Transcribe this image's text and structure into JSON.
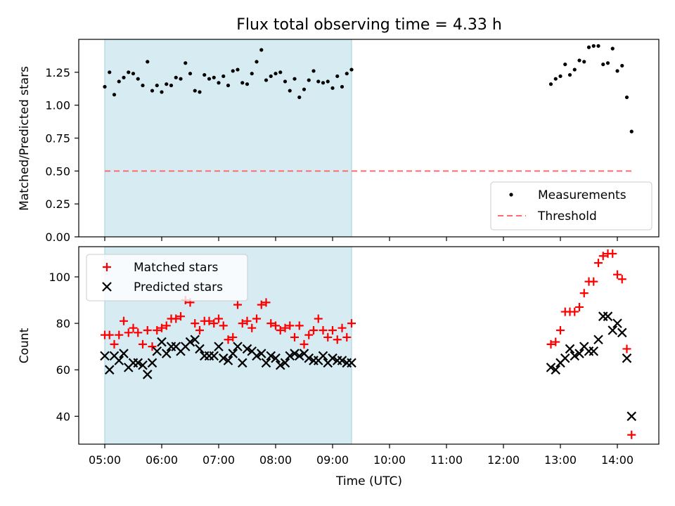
{
  "chart_data": [
    {
      "type": "scatter",
      "title": "Flux total observing time = 4.33 h",
      "xlabel": "",
      "ylabel": "Matched/Predicted stars",
      "ylim": [
        0,
        1.5
      ],
      "yticks": [
        "0.00",
        "0.25",
        "0.50",
        "0.75",
        "1.00",
        "1.25"
      ],
      "shaded_span": [
        "05:00",
        "09:20"
      ],
      "legend": {
        "position": "lower-right",
        "entries": [
          "Measurements",
          "Threshold"
        ]
      },
      "threshold": {
        "name": "Threshold",
        "y": 0.5,
        "x": [
          "05:00",
          "14:15"
        ]
      },
      "series": [
        {
          "name": "Measurements",
          "x": [
            "05:00",
            "05:05",
            "05:10",
            "05:15",
            "05:20",
            "05:25",
            "05:30",
            "05:35",
            "05:40",
            "05:45",
            "05:50",
            "05:55",
            "06:00",
            "06:05",
            "06:10",
            "06:15",
            "06:20",
            "06:25",
            "06:30",
            "06:35",
            "06:40",
            "06:45",
            "06:50",
            "06:55",
            "07:00",
            "07:05",
            "07:10",
            "07:15",
            "07:20",
            "07:25",
            "07:30",
            "07:35",
            "07:40",
            "07:45",
            "07:50",
            "07:55",
            "08:00",
            "08:05",
            "08:10",
            "08:15",
            "08:20",
            "08:25",
            "08:30",
            "08:35",
            "08:40",
            "08:45",
            "08:50",
            "08:55",
            "09:00",
            "09:05",
            "09:10",
            "09:15",
            "09:20",
            "12:50",
            "12:55",
            "13:00",
            "13:05",
            "13:10",
            "13:15",
            "13:20",
            "13:25",
            "13:30",
            "13:35",
            "13:40",
            "13:45",
            "13:50",
            "13:55",
            "14:00",
            "14:05",
            "14:10",
            "14:15"
          ],
          "values": [
            1.14,
            1.25,
            1.08,
            1.18,
            1.21,
            1.25,
            1.24,
            1.2,
            1.15,
            1.33,
            1.11,
            1.15,
            1.1,
            1.16,
            1.15,
            1.21,
            1.2,
            1.32,
            1.24,
            1.11,
            1.1,
            1.23,
            1.2,
            1.21,
            1.17,
            1.22,
            1.15,
            1.26,
            1.27,
            1.17,
            1.16,
            1.24,
            1.33,
            1.42,
            1.19,
            1.22,
            1.24,
            1.25,
            1.18,
            1.11,
            1.2,
            1.06,
            1.12,
            1.19,
            1.26,
            1.18,
            1.17,
            1.18,
            1.13,
            1.22,
            1.14,
            1.24,
            1.27,
            1.16,
            1.2,
            1.22,
            1.31,
            1.23,
            1.27,
            1.34,
            1.33,
            1.44,
            1.45,
            1.45,
            1.31,
            1.32,
            1.43,
            1.26,
            1.3,
            1.06,
            0.8
          ]
        }
      ]
    },
    {
      "type": "scatter",
      "title": "",
      "xlabel": "Time (UTC)",
      "ylabel": "Count",
      "ylim": [
        28,
        113
      ],
      "yticks": [
        "40",
        "60",
        "80",
        "100"
      ],
      "xticks": [
        "05:00",
        "06:00",
        "07:00",
        "08:00",
        "09:00",
        "10:00",
        "11:00",
        "12:00",
        "13:00",
        "14:00"
      ],
      "shaded_span": [
        "05:00",
        "09:20"
      ],
      "legend": {
        "position": "upper-left",
        "entries": [
          "Matched stars",
          "Predicted stars"
        ]
      },
      "series": [
        {
          "name": "Matched stars",
          "marker": "+",
          "color": "#ff0000",
          "x": [
            "05:00",
            "05:05",
            "05:10",
            "05:15",
            "05:20",
            "05:25",
            "05:30",
            "05:35",
            "05:40",
            "05:45",
            "05:50",
            "05:55",
            "06:00",
            "06:05",
            "06:10",
            "06:15",
            "06:20",
            "06:25",
            "06:30",
            "06:35",
            "06:40",
            "06:45",
            "06:50",
            "06:55",
            "07:00",
            "07:05",
            "07:10",
            "07:15",
            "07:20",
            "07:25",
            "07:30",
            "07:35",
            "07:40",
            "07:45",
            "07:50",
            "07:55",
            "08:00",
            "08:05",
            "08:10",
            "08:15",
            "08:20",
            "08:25",
            "08:30",
            "08:35",
            "08:40",
            "08:45",
            "08:50",
            "08:55",
            "09:00",
            "09:05",
            "09:10",
            "09:15",
            "09:20",
            "12:50",
            "12:55",
            "13:00",
            "13:05",
            "13:10",
            "13:15",
            "13:20",
            "13:25",
            "13:30",
            "13:35",
            "13:40",
            "13:45",
            "13:50",
            "13:55",
            "14:00",
            "14:05",
            "14:10",
            "14:15"
          ],
          "values": [
            75,
            75,
            71,
            75,
            81,
            76,
            78,
            76,
            71,
            77,
            70,
            77,
            78,
            79,
            82,
            82,
            83,
            90,
            89,
            80,
            77,
            81,
            81,
            80,
            82,
            79,
            73,
            74,
            88,
            80,
            81,
            78,
            82,
            88,
            89,
            80,
            79,
            77,
            78,
            79,
            74,
            79,
            71,
            75,
            77,
            82,
            77,
            74,
            77,
            73,
            78,
            74,
            80,
            71,
            72,
            77,
            85,
            85,
            85,
            87,
            93,
            98,
            98,
            106,
            109,
            110,
            110,
            101,
            99,
            69,
            32
          ]
        },
        {
          "name": "Predicted stars",
          "marker": "x",
          "color": "#000000",
          "x": [
            "05:00",
            "05:05",
            "05:10",
            "05:15",
            "05:20",
            "05:25",
            "05:30",
            "05:35",
            "05:40",
            "05:45",
            "05:50",
            "05:55",
            "06:00",
            "06:05",
            "06:10",
            "06:15",
            "06:20",
            "06:25",
            "06:30",
            "06:35",
            "06:40",
            "06:45",
            "06:50",
            "06:55",
            "07:00",
            "07:05",
            "07:10",
            "07:15",
            "07:20",
            "07:25",
            "07:30",
            "07:35",
            "07:40",
            "07:45",
            "07:50",
            "07:55",
            "08:00",
            "08:05",
            "08:10",
            "08:15",
            "08:20",
            "08:25",
            "08:30",
            "08:35",
            "08:40",
            "08:45",
            "08:50",
            "08:55",
            "09:00",
            "09:05",
            "09:10",
            "09:15",
            "09:20",
            "12:50",
            "12:55",
            "13:00",
            "13:05",
            "13:10",
            "13:15",
            "13:20",
            "13:25",
            "13:30",
            "13:35",
            "13:40",
            "13:45",
            "13:50",
            "13:55",
            "14:00",
            "14:05",
            "14:10",
            "14:15"
          ],
          "values": [
            66,
            60,
            66,
            64,
            67,
            61,
            63,
            63,
            62,
            58,
            63,
            68,
            72,
            67,
            70,
            70,
            68,
            70,
            72,
            73,
            69,
            66,
            66,
            66,
            70,
            65,
            64,
            67,
            70,
            63,
            69,
            68,
            66,
            67,
            63,
            66,
            65,
            62,
            63,
            66,
            67,
            66,
            67,
            65,
            64,
            64,
            66,
            63,
            65,
            64,
            64,
            63,
            63,
            61,
            60,
            63,
            65,
            69,
            66,
            67,
            70,
            68,
            68,
            73,
            83,
            83,
            77,
            80,
            76,
            65,
            40
          ]
        }
      ]
    }
  ]
}
